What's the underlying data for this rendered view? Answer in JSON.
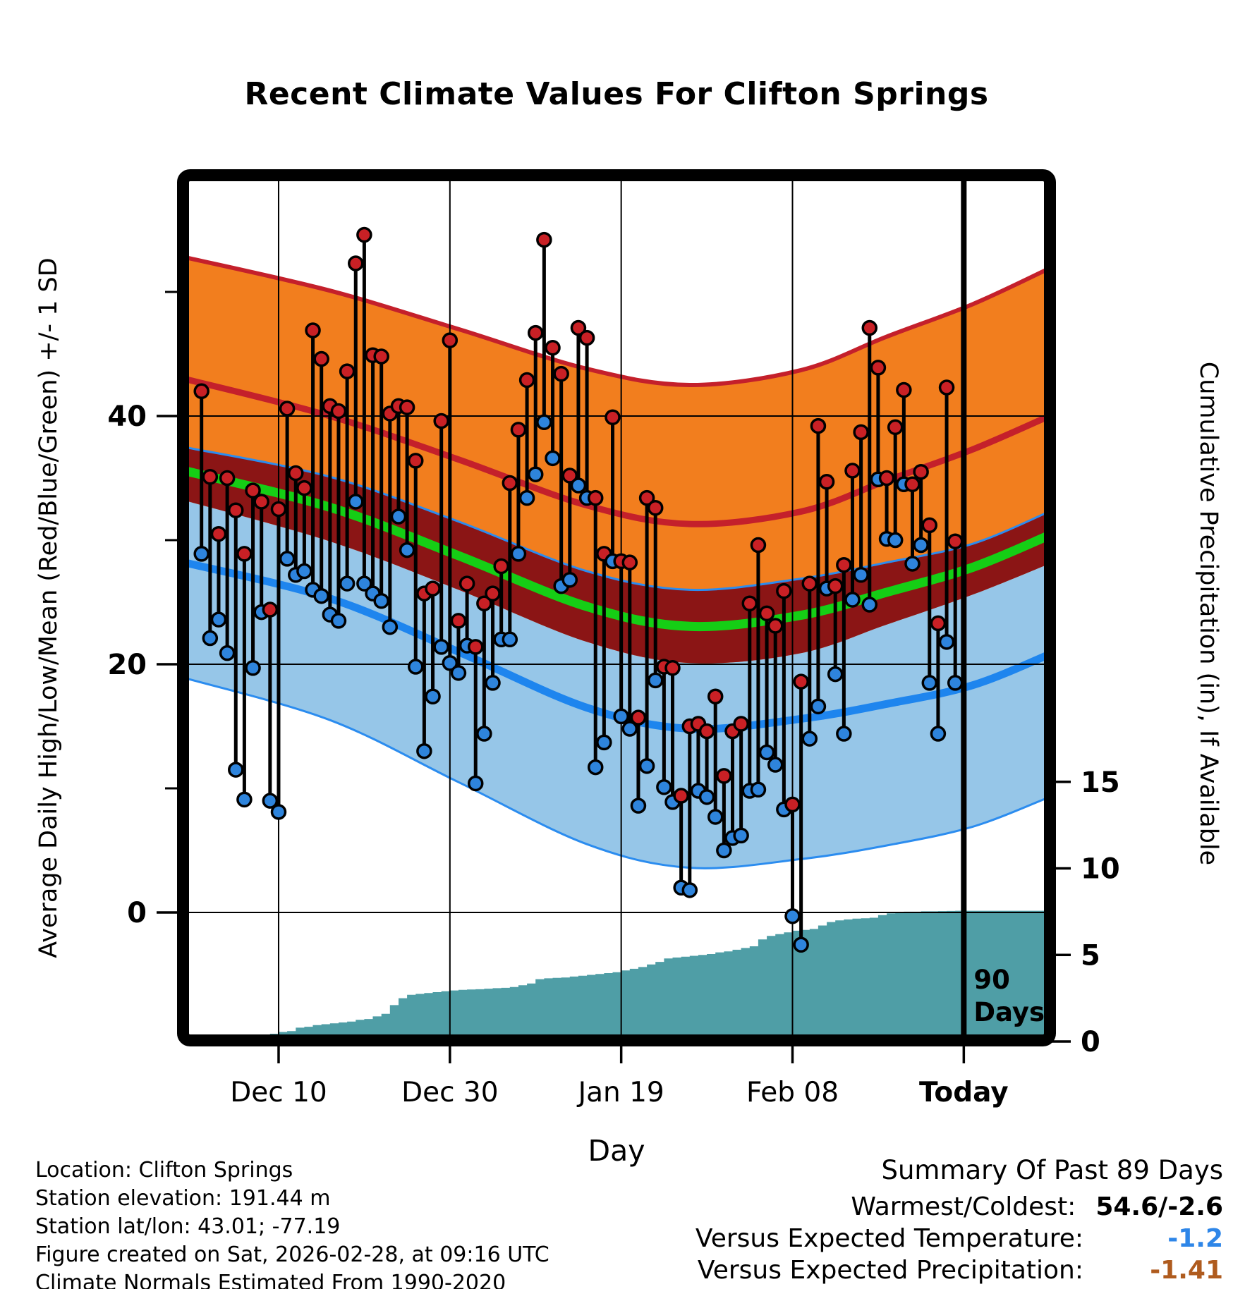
{
  "title": "Recent Climate Values For Clifton Springs",
  "axes": {
    "left_label": "Average Daily High/Low/Mean (Red/Blue/Green) +/- 1 SD",
    "right_label": "Cumulative Precipitation (in), If Available",
    "x_label": "Day",
    "left_ticks": [
      40,
      20,
      0
    ],
    "left_minor_ticks": [
      50,
      30,
      10
    ],
    "right_ticks": [
      15,
      10,
      5,
      0
    ],
    "x_tick_labels": [
      "Dec 10",
      "Dec 30",
      "Jan 19",
      "Feb 08",
      "Today"
    ]
  },
  "annotations": {
    "today_marker_line1": "90",
    "today_marker_line2": "Days"
  },
  "footer_left": {
    "lines": [
      "Location: Clifton Springs",
      "Station elevation: 191.44 m",
      "Station lat/lon: 43.01; -77.19",
      "Figure created on Sat, 2026-02-28, at 09:16 UTC",
      "Climate Normals Estimated From 1990-2020"
    ]
  },
  "summary": {
    "heading": "Summary Of Past 89 Days",
    "rows": [
      {
        "label": "Warmest/Coldest:",
        "value": "54.6/-2.6",
        "color": "#000000"
      },
      {
        "label": "Versus Expected Temperature:",
        "value": "-1.2",
        "color": "#2E86E8"
      },
      {
        "label": "Versus Expected Precipitation:",
        "value": "-1.41",
        "color": "#AF5B1E"
      }
    ]
  },
  "colors": {
    "high_band": "#F27E1E",
    "high_mean_line": "#C4202B",
    "overlap_band": "#8B1515",
    "mean_line": "#15CE15",
    "low_band": "#96C6E8",
    "low_mean_line": "#1E85EE",
    "low_band_edge": "#2B8CEF",
    "precip_fill": "#4F9EA6",
    "stem": "#000000",
    "high_dot": "#C92025",
    "low_dot": "#2E84DC",
    "gridline": "#000000",
    "frame": "#000000",
    "temp_anomaly_value": "#2E86E8",
    "precip_anomaly_value": "#AF5B1E"
  },
  "chart_data": {
    "type": "composite",
    "subtype": "daily high/low stems + climatology bands (line/area) + cumulative precipitation area",
    "title": "Recent Climate Values For Clifton Springs",
    "x_axis": {
      "label": "Day",
      "start_date": "Dec 1",
      "end_date": "Feb 27",
      "days_shown": 89,
      "tick_labels": [
        "Dec 10",
        "Dec 30",
        "Jan 19",
        "Feb 08",
        "Today"
      ],
      "tick_day_index": [
        9,
        29,
        49,
        69,
        89
      ],
      "today_day_index": 89,
      "grid": true
    },
    "temp_axis": {
      "label": "Average Daily High/Low/Mean (Red/Blue/Green) +/- 1 SD",
      "ticks": [
        40,
        20,
        0
      ],
      "minor_ticks": [
        50,
        30,
        10
      ],
      "grid": true
    },
    "precip_axis": {
      "label": "Cumulative Precipitation (in), If Available",
      "ticks": [
        15,
        10,
        5,
        0
      ],
      "max_cumulative": 7.55
    },
    "daily": {
      "high": [
        42.0,
        35.1,
        30.5,
        35.0,
        32.4,
        28.9,
        34.0,
        33.1,
        24.4,
        32.5,
        40.6,
        35.4,
        34.2,
        46.9,
        44.6,
        40.8,
        40.4,
        43.6,
        52.3,
        54.6,
        44.9,
        44.8,
        40.2,
        40.8,
        40.7,
        36.4,
        25.7,
        26.1,
        39.6,
        46.1,
        23.5,
        26.5,
        21.4,
        24.9,
        25.7,
        27.9,
        34.6,
        38.9,
        42.9,
        46.7,
        54.2,
        45.5,
        43.4,
        35.2,
        47.1,
        46.3,
        33.4,
        28.9,
        39.9,
        28.3,
        28.2,
        15.7,
        33.4,
        32.6,
        19.8,
        19.7,
        9.4,
        15.0,
        15.2,
        14.6,
        17.4,
        11.0,
        14.6,
        15.2,
        24.9,
        29.6,
        24.1,
        23.1,
        25.9,
        8.7,
        18.6,
        26.5,
        39.2,
        34.7,
        26.3,
        28.0,
        35.6,
        38.7,
        47.1,
        43.9,
        35.0,
        39.1,
        42.1,
        34.5,
        35.5,
        31.2,
        23.3,
        42.3,
        29.9
      ],
      "low": [
        28.9,
        22.1,
        23.6,
        20.9,
        11.5,
        9.1,
        19.7,
        24.2,
        9.0,
        8.1,
        28.5,
        27.2,
        27.5,
        26.0,
        25.5,
        24.0,
        23.5,
        26.5,
        33.1,
        26.5,
        25.7,
        25.1,
        23.0,
        31.9,
        29.2,
        19.8,
        13.0,
        17.4,
        21.4,
        20.1,
        19.3,
        21.5,
        10.4,
        14.4,
        18.5,
        22.0,
        22.0,
        28.9,
        33.4,
        35.3,
        39.5,
        36.6,
        26.3,
        26.8,
        34.4,
        33.4,
        11.7,
        13.7,
        28.3,
        15.8,
        14.8,
        8.6,
        11.8,
        18.7,
        10.1,
        8.9,
        2.0,
        1.8,
        9.8,
        9.3,
        7.7,
        5.0,
        6.0,
        6.2,
        9.8,
        9.9,
        12.9,
        11.9,
        8.3,
        -0.3,
        -2.6,
        14.0,
        16.6,
        26.1,
        19.2,
        14.4,
        25.2,
        27.2,
        24.8,
        34.9,
        30.1,
        30.0,
        34.5,
        28.1,
        29.6,
        18.5,
        14.4,
        21.8,
        18.5
      ],
      "warmest": 54.6,
      "coldest": -2.6
    },
    "normals": {
      "anchor_day": [
        -2,
        15,
        30,
        45,
        57,
        70,
        80,
        90,
        99
      ],
      "high_mean": [
        43.0,
        40.0,
        36.5,
        32.8,
        31.3,
        32.3,
        34.8,
        37.3,
        40.0
      ],
      "low_mean": [
        28.2,
        25.3,
        21.0,
        16.5,
        14.8,
        15.6,
        16.8,
        18.3,
        20.8
      ],
      "sd_high": [
        9.8,
        10.1,
        10.5,
        11.0,
        11.2,
        11.4,
        11.6,
        11.7,
        11.9
      ],
      "sd_low": [
        9.3,
        9.8,
        10.5,
        11.0,
        11.2,
        11.3,
        11.4,
        11.4,
        11.5
      ]
    },
    "precip_cumulative": [
      0.05,
      0.1,
      0.15,
      0.2,
      0.25,
      0.3,
      0.35,
      0.4,
      0.45,
      0.55,
      0.6,
      0.8,
      0.85,
      0.95,
      1.0,
      1.05,
      1.1,
      1.15,
      1.25,
      1.3,
      1.45,
      1.6,
      2.1,
      2.5,
      2.7,
      2.75,
      2.8,
      2.85,
      2.9,
      2.95,
      2.98,
      3.0,
      3.02,
      3.05,
      3.08,
      3.1,
      3.15,
      3.25,
      3.35,
      3.6,
      3.65,
      3.68,
      3.7,
      3.75,
      3.8,
      3.85,
      3.9,
      3.95,
      4.0,
      4.1,
      4.2,
      4.3,
      4.45,
      4.6,
      4.8,
      4.85,
      4.9,
      4.95,
      5.0,
      5.05,
      5.15,
      5.2,
      5.3,
      5.4,
      5.5,
      5.9,
      6.1,
      6.2,
      6.3,
      6.4,
      6.45,
      6.5,
      6.7,
      6.9,
      7.0,
      7.05,
      7.1,
      7.12,
      7.15,
      7.3,
      7.4,
      7.45,
      7.5,
      7.5,
      7.52,
      7.52,
      7.53,
      7.54,
      7.55
    ],
    "versus_expected_temperature": -1.2,
    "versus_expected_precipitation": -1.41,
    "legend_position": "none"
  }
}
